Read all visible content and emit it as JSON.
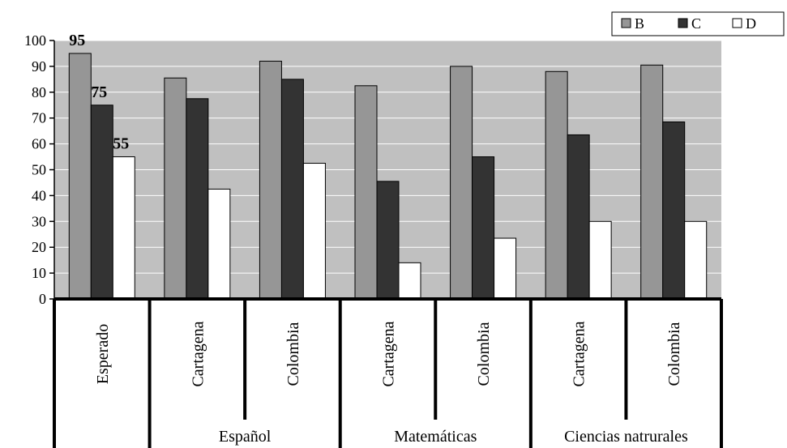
{
  "chart_data": {
    "type": "bar",
    "title": "",
    "xlabel": "",
    "ylabel": "",
    "ylim": [
      0,
      100
    ],
    "yticks": [
      0,
      10,
      20,
      30,
      40,
      50,
      60,
      70,
      80,
      90,
      100
    ],
    "grid": true,
    "legend_position": "top-right",
    "categories": [
      "Esperado",
      "Cartagena",
      "Colombia",
      "Cartagena",
      "Colombia",
      "Cartagena",
      "Colombia"
    ],
    "groups": [
      {
        "label": "",
        "span": [
          0,
          0
        ]
      },
      {
        "label": "Español",
        "span": [
          1,
          2
        ]
      },
      {
        "label": "Matemáticas",
        "span": [
          3,
          4
        ]
      },
      {
        "label": "Ciencias natrurales",
        "span": [
          5,
          6
        ]
      }
    ],
    "series": [
      {
        "name": "B",
        "color": "#969696",
        "values": [
          95,
          85.5,
          92,
          82.5,
          90,
          88,
          90.5
        ]
      },
      {
        "name": "C",
        "color": "#333333",
        "values": [
          75,
          77.5,
          85,
          45.5,
          55,
          63.5,
          68.5
        ]
      },
      {
        "name": "D",
        "color": "#ffffff",
        "values": [
          55,
          42.5,
          52.5,
          14,
          23.5,
          30,
          30
        ]
      }
    ],
    "data_labels": [
      {
        "series": 0,
        "category": 0,
        "text": "95"
      },
      {
        "series": 1,
        "category": 0,
        "text": "75"
      },
      {
        "series": 2,
        "category": 0,
        "text": "55"
      }
    ],
    "colors": {
      "plot_background": "#c0c0c0",
      "gridline": "#ffffff",
      "axis": "#000000"
    }
  }
}
